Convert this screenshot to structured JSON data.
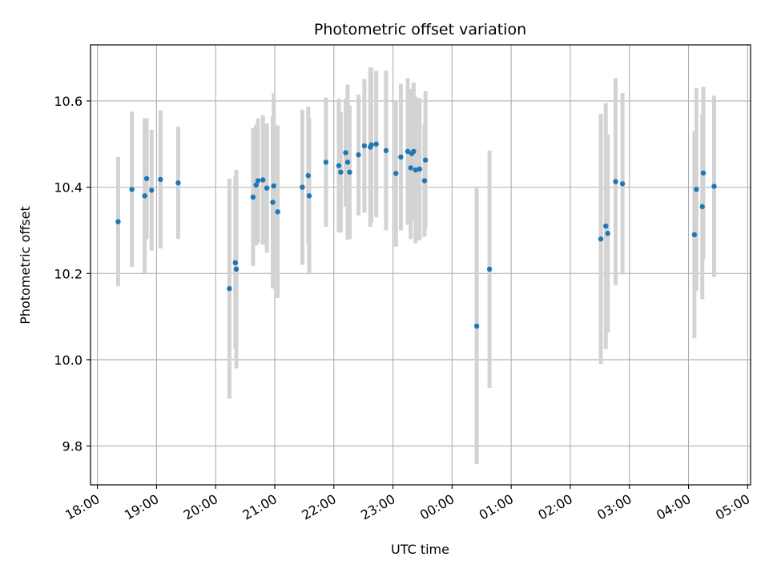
{
  "chart_data": {
    "type": "scatter",
    "title": "Photometric offset variation",
    "xlabel": "UTC time",
    "ylabel": "Photometric offset",
    "x_is_time": true,
    "xlim": [
      "17:53",
      "05:03"
    ],
    "ylim": [
      9.71,
      10.73
    ],
    "x_ticks": [
      "18:00",
      "19:00",
      "20:00",
      "21:00",
      "22:00",
      "23:00",
      "00:00",
      "01:00",
      "02:00",
      "03:00",
      "04:00",
      "05:00"
    ],
    "y_ticks": [
      "9.8",
      "10.0",
      "10.2",
      "10.4",
      "10.6"
    ],
    "grid": true,
    "colors": {
      "points": "#1f77b4",
      "error_bars": "#d3d3d3",
      "grid": "#b0b0b0",
      "axes": "#000000"
    },
    "series": [
      {
        "x": [
          "18:21",
          "18:35",
          "18:48",
          "18:50",
          "18:55",
          "19:04",
          "19:22",
          "20:14",
          "20:20",
          "20:21",
          "20:38",
          "20:41",
          "20:43",
          "20:48",
          "20:52",
          "20:58",
          "20:59",
          "21:03",
          "21:28",
          "21:34",
          "21:35",
          "21:52",
          "22:05",
          "22:07",
          "22:12",
          "22:14",
          "22:16",
          "22:25",
          "22:31",
          "22:37",
          "22:38",
          "22:43",
          "22:53",
          "23:03",
          "23:08",
          "23:15",
          "23:18",
          "23:19",
          "23:21",
          "23:23",
          "23:27",
          "23:32",
          "23:33",
          "00:25",
          "00:38",
          "02:31",
          "02:36",
          "02:38",
          "02:46",
          "02:53",
          "04:06",
          "04:08",
          "04:14",
          "04:15",
          "04:26"
        ],
        "y": [
          10.32,
          10.395,
          10.38,
          10.42,
          10.393,
          10.418,
          10.41,
          10.165,
          10.225,
          10.21,
          10.377,
          10.405,
          10.415,
          10.417,
          10.398,
          10.365,
          10.403,
          10.343,
          10.4,
          10.427,
          10.38,
          10.458,
          10.45,
          10.435,
          10.48,
          10.458,
          10.435,
          10.475,
          10.496,
          10.493,
          10.498,
          10.5,
          10.485,
          10.432,
          10.47,
          10.483,
          10.445,
          10.478,
          10.483,
          10.44,
          10.442,
          10.415,
          10.463,
          10.078,
          10.21,
          10.28,
          10.31,
          10.293,
          10.413,
          10.408,
          10.29,
          10.395,
          10.355,
          10.433,
          10.402
        ],
        "err": [
          0.15,
          0.18,
          0.18,
          0.14,
          0.14,
          0.16,
          0.13,
          0.255,
          0.2,
          0.23,
          0.16,
          0.14,
          0.145,
          0.15,
          0.15,
          0.2,
          0.215,
          0.2,
          0.18,
          0.16,
          0.18,
          0.15,
          0.155,
          0.14,
          0.125,
          0.18,
          0.155,
          0.14,
          0.155,
          0.185,
          0.18,
          0.17,
          0.185,
          0.17,
          0.17,
          0.17,
          0.165,
          0.15,
          0.16,
          0.17,
          0.165,
          0.13,
          0.16,
          0.32,
          0.275,
          0.29,
          0.285,
          0.23,
          0.24,
          0.21,
          0.24,
          0.235,
          0.215,
          0.2,
          0.21
        ]
      }
    ]
  }
}
